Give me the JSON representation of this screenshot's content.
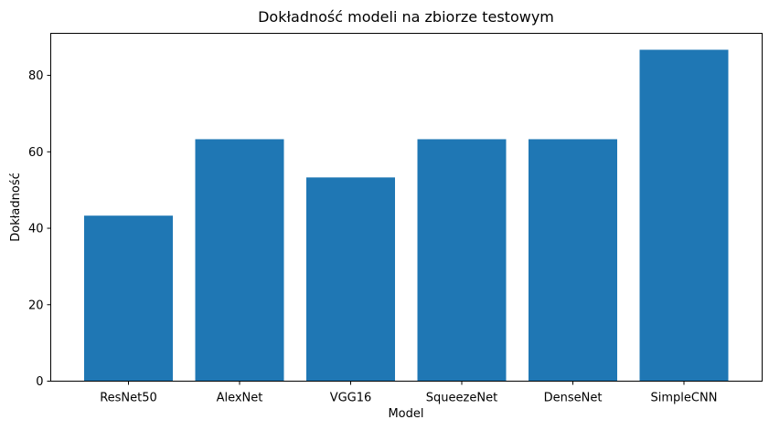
{
  "chart_data": {
    "type": "bar",
    "title": "Dokładność modeli na zbiorze testowym",
    "xlabel": "Model",
    "ylabel": "Dokładność",
    "categories": [
      "ResNet50",
      "AlexNet",
      "VGG16",
      "SqueezeNet",
      "DenseNet",
      "SimpleCNN"
    ],
    "values": [
      43.3,
      63.3,
      53.3,
      63.3,
      63.3,
      86.7
    ],
    "ylim": [
      0,
      91
    ],
    "yticks": [
      0,
      20,
      40,
      60,
      80
    ],
    "bar_color": "#1f77b4",
    "grid": false,
    "legend": "none"
  }
}
